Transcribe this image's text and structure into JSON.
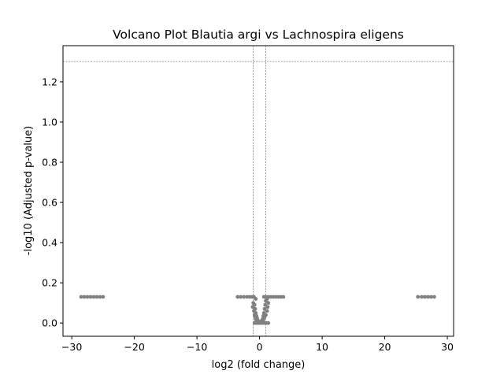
{
  "chart_data": {
    "type": "scatter",
    "title": "Volcano Plot Blautia argi vs Lachnospira eligens",
    "xlabel": "log2 (fold change)",
    "ylabel": "-log10 (Adjusted p-value)",
    "xlim": [
      -31.4,
      31.0
    ],
    "ylim": [
      -0.066,
      1.38
    ],
    "xticks": [
      -30,
      -20,
      -10,
      0,
      10,
      20,
      30
    ],
    "xtick_labels": [
      "−30",
      "−20",
      "−10",
      "0",
      "10",
      "20",
      "30"
    ],
    "yticks": [
      0.0,
      0.2,
      0.4,
      0.6,
      0.8,
      1.0,
      1.2
    ],
    "ytick_labels": [
      "0.0",
      "0.2",
      "0.4",
      "0.6",
      "0.8",
      "1.0",
      "1.2"
    ],
    "grid": false,
    "legend": "none",
    "point_color": "#808080",
    "threshold_color": "#808080",
    "thresholds": {
      "vertical": [
        -1,
        1
      ],
      "horizontal": [
        1.301
      ]
    },
    "series": [
      {
        "points": [
          {
            "x": -28.5,
            "y": 0.13
          },
          {
            "x": -28.0,
            "y": 0.13
          },
          {
            "x": -27.5,
            "y": 0.13
          },
          {
            "x": -27.0,
            "y": 0.13
          },
          {
            "x": -26.5,
            "y": 0.13
          },
          {
            "x": -26.0,
            "y": 0.13
          },
          {
            "x": -25.5,
            "y": 0.13
          },
          {
            "x": -25.0,
            "y": 0.13
          },
          {
            "x": -3.5,
            "y": 0.13
          },
          {
            "x": -3.0,
            "y": 0.13
          },
          {
            "x": -2.5,
            "y": 0.13
          },
          {
            "x": -2.0,
            "y": 0.13
          },
          {
            "x": -1.6,
            "y": 0.13
          },
          {
            "x": -1.2,
            "y": 0.13
          },
          {
            "x": -0.9,
            "y": 0.13
          },
          {
            "x": -0.6,
            "y": 0.12
          },
          {
            "x": -1.0,
            "y": 0.1
          },
          {
            "x": -0.8,
            "y": 0.09
          },
          {
            "x": -1.1,
            "y": 0.08
          },
          {
            "x": -0.7,
            "y": 0.07
          },
          {
            "x": -0.9,
            "y": 0.06
          },
          {
            "x": -0.6,
            "y": 0.05
          },
          {
            "x": -0.8,
            "y": 0.04
          },
          {
            "x": -0.5,
            "y": 0.035
          },
          {
            "x": -0.7,
            "y": 0.03
          },
          {
            "x": -0.4,
            "y": 0.025
          },
          {
            "x": -0.6,
            "y": 0.02
          },
          {
            "x": -0.3,
            "y": 0.015
          },
          {
            "x": -0.5,
            "y": 0.01
          },
          {
            "x": -0.2,
            "y": 0.008
          },
          {
            "x": -0.8,
            "y": 0.0
          },
          {
            "x": -0.5,
            "y": 0.0
          },
          {
            "x": -0.2,
            "y": 0.0
          },
          {
            "x": 0.0,
            "y": 0.0
          },
          {
            "x": 0.2,
            "y": 0.0
          },
          {
            "x": 0.5,
            "y": 0.0
          },
          {
            "x": 0.8,
            "y": 0.0
          },
          {
            "x": 1.1,
            "y": 0.0
          },
          {
            "x": 1.4,
            "y": 0.0
          },
          {
            "x": 0.3,
            "y": 0.01
          },
          {
            "x": 0.6,
            "y": 0.015
          },
          {
            "x": 0.5,
            "y": 0.02
          },
          {
            "x": 0.8,
            "y": 0.03
          },
          {
            "x": 0.6,
            "y": 0.035
          },
          {
            "x": 1.0,
            "y": 0.04
          },
          {
            "x": 0.7,
            "y": 0.05
          },
          {
            "x": 1.2,
            "y": 0.06
          },
          {
            "x": 0.8,
            "y": 0.07
          },
          {
            "x": 1.3,
            "y": 0.08
          },
          {
            "x": 0.9,
            "y": 0.09
          },
          {
            "x": 1.4,
            "y": 0.1
          },
          {
            "x": 1.0,
            "y": 0.11
          },
          {
            "x": 1.2,
            "y": 0.12
          },
          {
            "x": 0.7,
            "y": 0.13
          },
          {
            "x": 1.0,
            "y": 0.13
          },
          {
            "x": 1.4,
            "y": 0.13
          },
          {
            "x": 1.8,
            "y": 0.13
          },
          {
            "x": 2.2,
            "y": 0.13
          },
          {
            "x": 2.6,
            "y": 0.13
          },
          {
            "x": 3.0,
            "y": 0.13
          },
          {
            "x": 3.4,
            "y": 0.13
          },
          {
            "x": 3.8,
            "y": 0.13
          },
          {
            "x": 25.3,
            "y": 0.13
          },
          {
            "x": 25.9,
            "y": 0.13
          },
          {
            "x": 26.4,
            "y": 0.13
          },
          {
            "x": 26.9,
            "y": 0.13
          },
          {
            "x": 27.4,
            "y": 0.13
          },
          {
            "x": 27.9,
            "y": 0.13
          }
        ]
      }
    ]
  }
}
